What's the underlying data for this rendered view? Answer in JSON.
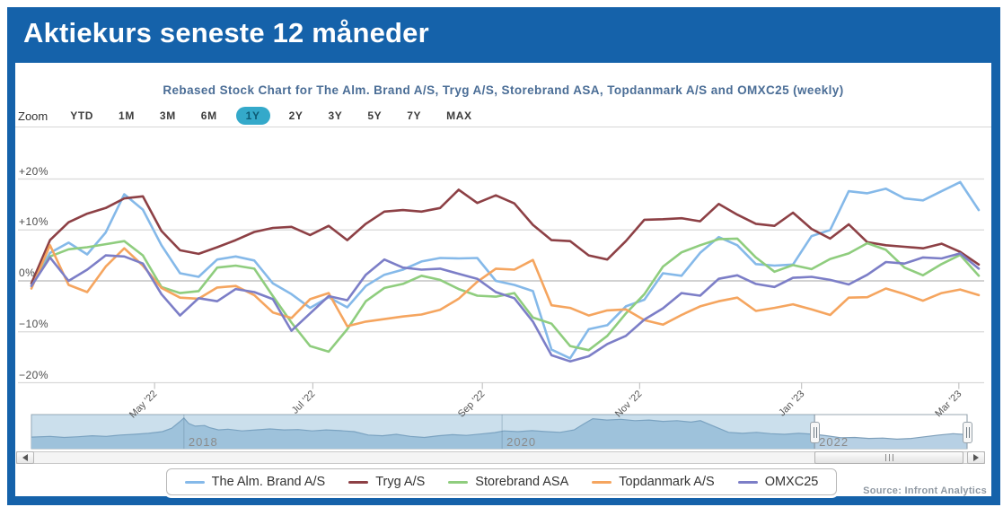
{
  "slide": {
    "title": "Aktiekurs seneste 12 måneder",
    "accent_color": "#1562aa",
    "source_note": "Source: Infront Analytics"
  },
  "toolbar": {
    "zoom_label": "Zoom",
    "buttons": [
      "YTD",
      "1M",
      "3M",
      "6M",
      "1Y",
      "2Y",
      "3Y",
      "5Y",
      "7Y",
      "MAX"
    ],
    "selected": "1Y",
    "selected_bg": "#34a9ca"
  },
  "chart_data": {
    "type": "line",
    "title": "Rebased Stock Chart for The Alm. Brand A/S, Tryg A/S, Storebrand ASA, Topdanmark A/S and OMXC25 (weekly)",
    "frequency": "weekly",
    "unit": "percent rebased",
    "ylim": [
      -20,
      20
    ],
    "grid": true,
    "legend_position": "bottom",
    "yticks": [
      {
        "label": "+20%",
        "value": 20
      },
      {
        "label": "+10%",
        "value": 10
      },
      {
        "label": "0%",
        "value": 0,
        "strong": true
      },
      {
        "label": "−10%",
        "value": -10
      },
      {
        "label": "−20%",
        "value": -20
      }
    ],
    "xticks": [
      {
        "label": "May '22",
        "f": 0.13
      },
      {
        "label": "Jul '22",
        "f": 0.297
      },
      {
        "label": "Sep '22",
        "f": 0.476
      },
      {
        "label": "Nov '22",
        "f": 0.642
      },
      {
        "label": "Jan '23",
        "f": 0.813
      },
      {
        "label": "Mar '23",
        "f": 0.979
      }
    ],
    "series": [
      {
        "name": "The Alm. Brand A/S",
        "slug": "alm-brand",
        "color": "#85b9e9",
        "values": [
          -1.0,
          5.5,
          7.5,
          5.2,
          9.5,
          17.0,
          14.0,
          7.0,
          1.5,
          0.8,
          4.2,
          4.8,
          4.0,
          -0.5,
          -2.6,
          -5.3,
          -3.2,
          -5.2,
          -1.0,
          1.2,
          2.2,
          3.8,
          4.5,
          4.4,
          4.5,
          0.0,
          -0.8,
          -2.0,
          -13.5,
          -15.2,
          -9.5,
          -8.7,
          -5.0,
          -3.7,
          1.5,
          1.0,
          5.5,
          8.6,
          7.0,
          3.3,
          3.0,
          3.2,
          8.8,
          10.0,
          17.6,
          17.2,
          18.1,
          16.2,
          15.8,
          17.6,
          19.4,
          13.9
        ]
      },
      {
        "name": "Tryg A/S",
        "slug": "tryg",
        "color": "#8d4045",
        "values": [
          -0.5,
          8.0,
          11.5,
          13.2,
          14.3,
          16.2,
          16.6,
          9.8,
          6.0,
          5.3,
          6.6,
          8.0,
          9.6,
          10.4,
          10.6,
          9.0,
          10.8,
          8.0,
          11.2,
          13.6,
          13.9,
          13.6,
          14.3,
          17.9,
          15.3,
          16.8,
          15.2,
          11.0,
          8.0,
          7.8,
          5.0,
          4.2,
          7.8,
          12.0,
          12.1,
          12.3,
          11.7,
          15.1,
          13.0,
          11.2,
          10.8,
          13.4,
          10.2,
          8.3,
          11.1,
          7.6,
          7.0,
          6.7,
          6.4,
          7.3,
          5.7,
          3.2
        ]
      },
      {
        "name": "Storebrand ASA",
        "slug": "storebrand",
        "color": "#8fcd7e",
        "values": [
          -1.0,
          4.8,
          6.2,
          6.6,
          7.2,
          7.8,
          5.0,
          -1.2,
          -2.4,
          -2.0,
          2.6,
          3.0,
          2.4,
          -3.0,
          -8.2,
          -12.8,
          -13.9,
          -9.5,
          -4.0,
          -1.4,
          -0.6,
          1.0,
          0.2,
          -1.6,
          -2.9,
          -3.1,
          -2.4,
          -7.2,
          -8.4,
          -12.8,
          -13.6,
          -10.8,
          -6.4,
          -2.6,
          2.8,
          5.6,
          7.0,
          8.2,
          8.3,
          4.6,
          1.8,
          3.1,
          2.3,
          4.3,
          5.4,
          7.4,
          6.1,
          2.6,
          1.1,
          3.3,
          5.1,
          1.0
        ]
      },
      {
        "name": "Topdanmark A/S",
        "slug": "topdanmark",
        "color": "#f5a55f",
        "values": [
          -1.5,
          7.0,
          -0.8,
          -2.2,
          2.8,
          6.4,
          3.0,
          -1.4,
          -3.3,
          -3.5,
          -1.3,
          -1.0,
          -2.8,
          -6.2,
          -7.3,
          -3.6,
          -2.4,
          -8.9,
          -8.0,
          -7.5,
          -7.0,
          -6.6,
          -5.7,
          -3.5,
          -0.2,
          2.4,
          2.2,
          4.1,
          -4.8,
          -5.3,
          -6.8,
          -5.8,
          -5.6,
          -7.7,
          -8.6,
          -6.7,
          -5.0,
          -4.0,
          -3.3,
          -5.9,
          -5.3,
          -4.6,
          -5.6,
          -6.7,
          -3.3,
          -3.2,
          -1.5,
          -2.6,
          -3.9,
          -2.4,
          -1.7,
          -2.8
        ]
      },
      {
        "name": "OMXC25",
        "slug": "omxc25",
        "color": "#7c7ec7",
        "values": [
          -1.0,
          4.6,
          0.0,
          2.2,
          5.0,
          4.8,
          3.4,
          -2.6,
          -6.8,
          -3.4,
          -4.0,
          -1.6,
          -2.2,
          -3.6,
          -9.8,
          -6.4,
          -3.0,
          -3.8,
          1.2,
          4.2,
          2.6,
          2.2,
          2.4,
          1.4,
          0.4,
          -2.2,
          -3.4,
          -8.0,
          -14.6,
          -15.8,
          -14.8,
          -12.4,
          -10.8,
          -7.6,
          -5.4,
          -2.4,
          -2.9,
          0.4,
          1.1,
          -0.6,
          -1.2,
          0.6,
          0.8,
          0.2,
          -0.7,
          1.2,
          3.7,
          3.4,
          4.6,
          4.4,
          5.4,
          2.4
        ]
      }
    ]
  },
  "navigator": {
    "year_labels": [
      {
        "label": "2018",
        "f": 0.163
      },
      {
        "label": "2020",
        "f": 0.503
      },
      {
        "label": "2022",
        "f": 0.837
      }
    ],
    "selected_f": [
      0.837,
      1.0
    ],
    "colors": {
      "area_fill": "#b7d0e4",
      "area_line": "#7e9fba",
      "mask": "rgba(118,170,204,0.38)",
      "outline": "#9aa7b2"
    },
    "profile": [
      [
        0,
        0.34
      ],
      [
        0.02,
        0.36
      ],
      [
        0.035,
        0.33
      ],
      [
        0.05,
        0.35
      ],
      [
        0.065,
        0.38
      ],
      [
        0.08,
        0.36
      ],
      [
        0.095,
        0.4
      ],
      [
        0.11,
        0.42
      ],
      [
        0.125,
        0.45
      ],
      [
        0.14,
        0.5
      ],
      [
        0.15,
        0.6
      ],
      [
        0.158,
        0.78
      ],
      [
        0.163,
        0.9
      ],
      [
        0.168,
        0.74
      ],
      [
        0.175,
        0.66
      ],
      [
        0.185,
        0.68
      ],
      [
        0.19,
        0.62
      ],
      [
        0.2,
        0.55
      ],
      [
        0.21,
        0.57
      ],
      [
        0.225,
        0.52
      ],
      [
        0.24,
        0.55
      ],
      [
        0.255,
        0.58
      ],
      [
        0.27,
        0.55
      ],
      [
        0.285,
        0.56
      ],
      [
        0.3,
        0.52
      ],
      [
        0.315,
        0.55
      ],
      [
        0.33,
        0.53
      ],
      [
        0.345,
        0.5
      ],
      [
        0.36,
        0.4
      ],
      [
        0.375,
        0.38
      ],
      [
        0.39,
        0.42
      ],
      [
        0.405,
        0.36
      ],
      [
        0.42,
        0.33
      ],
      [
        0.435,
        0.38
      ],
      [
        0.45,
        0.41
      ],
      [
        0.465,
        0.39
      ],
      [
        0.48,
        0.43
      ],
      [
        0.495,
        0.47
      ],
      [
        0.505,
        0.52
      ],
      [
        0.52,
        0.5
      ],
      [
        0.535,
        0.53
      ],
      [
        0.55,
        0.5
      ],
      [
        0.565,
        0.48
      ],
      [
        0.58,
        0.55
      ],
      [
        0.59,
        0.72
      ],
      [
        0.6,
        0.88
      ],
      [
        0.615,
        0.84
      ],
      [
        0.63,
        0.86
      ],
      [
        0.645,
        0.82
      ],
      [
        0.66,
        0.84
      ],
      [
        0.675,
        0.8
      ],
      [
        0.69,
        0.82
      ],
      [
        0.705,
        0.78
      ],
      [
        0.715,
        0.82
      ],
      [
        0.73,
        0.65
      ],
      [
        0.745,
        0.48
      ],
      [
        0.76,
        0.45
      ],
      [
        0.775,
        0.48
      ],
      [
        0.79,
        0.44
      ],
      [
        0.805,
        0.42
      ],
      [
        0.82,
        0.45
      ],
      [
        0.837,
        0.42
      ],
      [
        0.85,
        0.38
      ],
      [
        0.865,
        0.32
      ],
      [
        0.88,
        0.33
      ],
      [
        0.895,
        0.3
      ],
      [
        0.91,
        0.31
      ],
      [
        0.925,
        0.28
      ],
      [
        0.94,
        0.3
      ],
      [
        0.955,
        0.35
      ],
      [
        0.97,
        0.4
      ],
      [
        0.985,
        0.44
      ],
      [
        1.0,
        0.41
      ]
    ]
  }
}
